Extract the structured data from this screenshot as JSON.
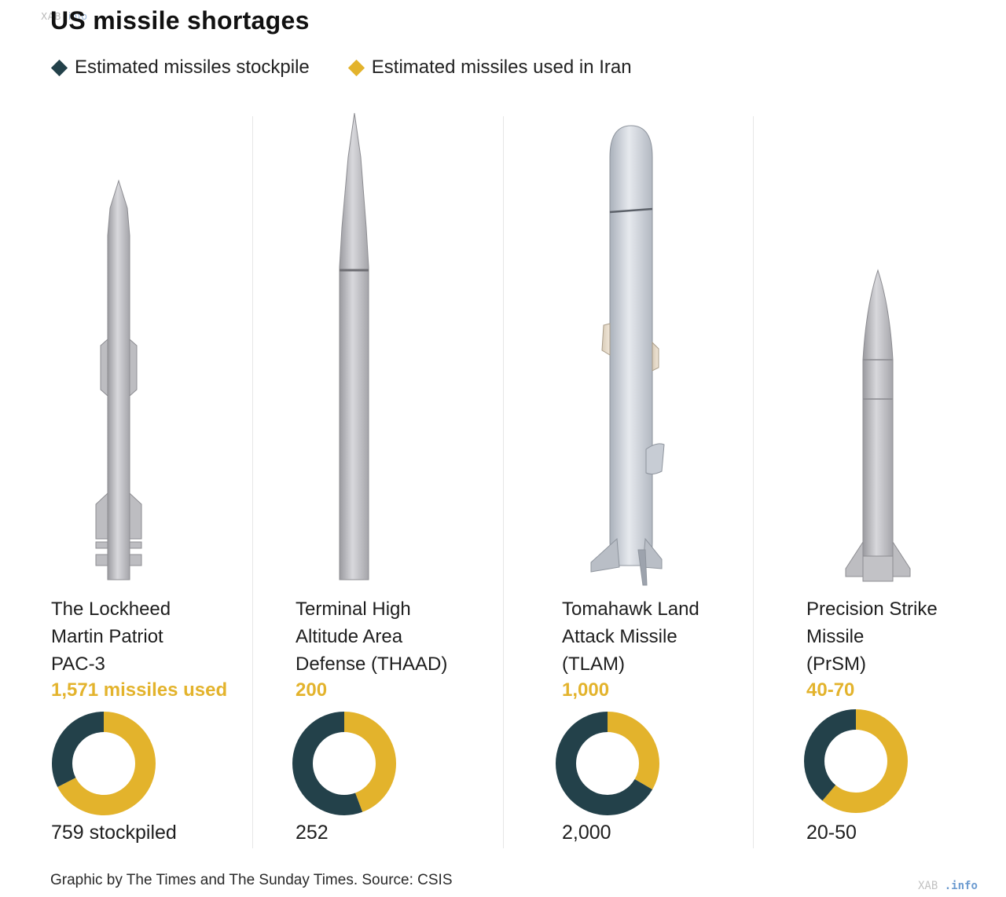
{
  "watermark": {
    "left": "XAB",
    "right": ".info"
  },
  "title": "US missile shortages",
  "legend": [
    {
      "label": "Estimated missiles stockpile",
      "color": "#23414a"
    },
    {
      "label": "Estimated missiles used in Iran",
      "color": "#e3b32c"
    }
  ],
  "colors": {
    "stockpile": "#23414a",
    "used": "#e3b32c",
    "missile_body": "#c9c9cc",
    "tomahawk_fin": "#e8dccb"
  },
  "chart_data": {
    "type": "pie",
    "title": "US missile shortages",
    "series_names": [
      "Estimated missiles stockpile",
      "Estimated missiles used in Iran"
    ],
    "items": [
      {
        "name_lines": [
          "The Lockheed",
          "Martin Patriot",
          "PAC-3"
        ],
        "used_text": "1,571 missiles used",
        "used": 1571,
        "stockpile_text": "759 stockpiled",
        "stockpile": 759,
        "icon": "patriot-missile-icon"
      },
      {
        "name_lines": [
          "Terminal High",
          "Altitude Area",
          "Defense (THAAD)"
        ],
        "used_text": "200",
        "used": 200,
        "stockpile_text": "252",
        "stockpile": 252,
        "icon": "thaad-missile-icon"
      },
      {
        "name_lines": [
          "Tomahawk Land",
          "Attack Missile",
          "(TLAM)"
        ],
        "used_text": "1,000",
        "used": 1000,
        "stockpile_text": "2,000",
        "stockpile": 2000,
        "icon": "tomahawk-missile-icon"
      },
      {
        "name_lines": [
          "Precision Strike",
          "Missile",
          "(PrSM)"
        ],
        "used_text": "40-70",
        "used": 55,
        "stockpile_text": "20-50",
        "stockpile": 35,
        "icon": "prsm-missile-icon"
      }
    ]
  },
  "footer": "Graphic by The Times and The Sunday Times. Source: CSIS"
}
